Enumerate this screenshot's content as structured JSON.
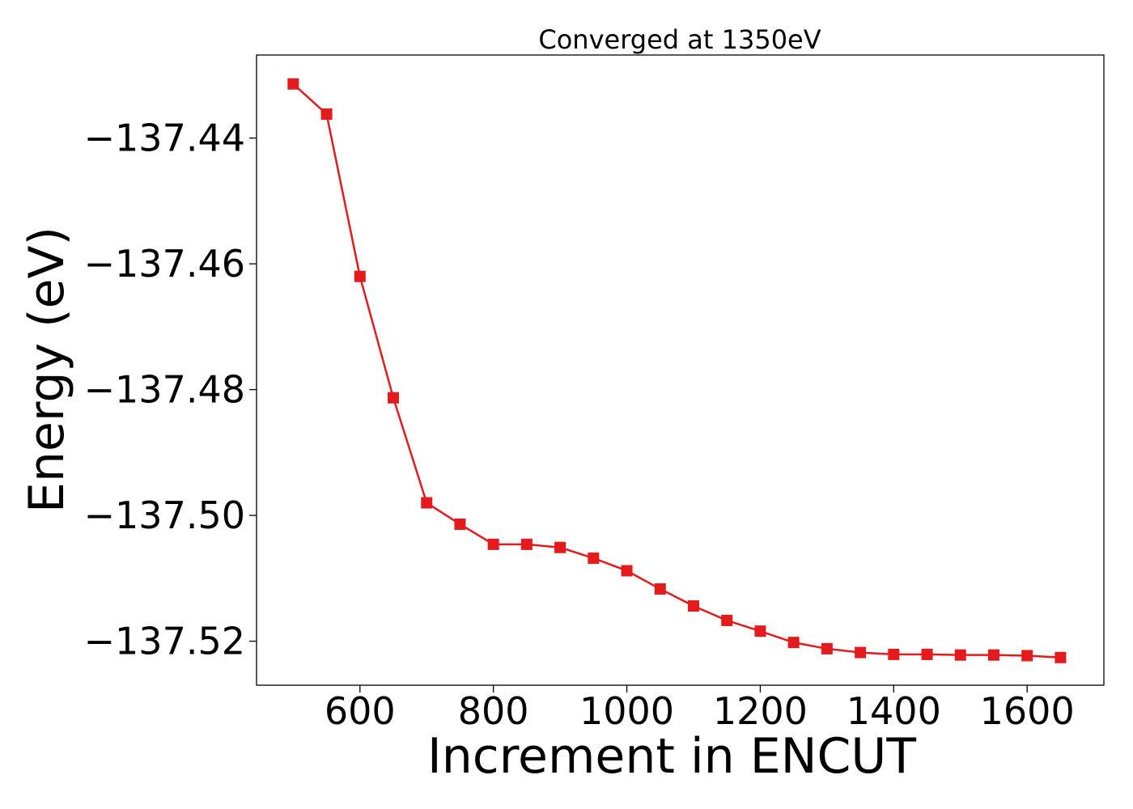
{
  "chart_data": {
    "type": "line",
    "title": "Converged at 1350eV",
    "xlabel": "Increment in ENCUT",
    "ylabel": "Energy (eV)",
    "xlim": [
      445,
      1715
    ],
    "ylim": [
      -137.527,
      -137.4268
    ],
    "xticks": [
      600,
      800,
      1000,
      1200,
      1400,
      1600
    ],
    "xtick_labels": [
      "600",
      "800",
      "1000",
      "1200",
      "1400",
      "1600"
    ],
    "yticks": [
      -137.44,
      -137.46,
      -137.48,
      -137.5,
      -137.52
    ],
    "ytick_labels": [
      "−137.44",
      "−137.46",
      "−137.48",
      "−137.50",
      "−137.52"
    ],
    "grid": false,
    "series": [
      {
        "color": "#e41a1c",
        "marker": "square",
        "x": [
          500,
          550,
          600,
          650,
          700,
          750,
          800,
          850,
          900,
          950,
          1000,
          1050,
          1100,
          1150,
          1200,
          1250,
          1300,
          1350,
          1400,
          1450,
          1500,
          1550,
          1600,
          1650
        ],
        "y": [
          -137.4314,
          -137.4362,
          -137.462,
          -137.4813,
          -137.498,
          -137.5014,
          -137.5046,
          -137.5046,
          -137.5051,
          -137.5068,
          -137.5088,
          -137.5117,
          -137.5144,
          -137.5167,
          -137.5184,
          -137.5202,
          -137.5212,
          -137.5218,
          -137.5221,
          -137.5221,
          -137.5222,
          -137.5222,
          -137.5223,
          -137.5226
        ]
      }
    ]
  }
}
